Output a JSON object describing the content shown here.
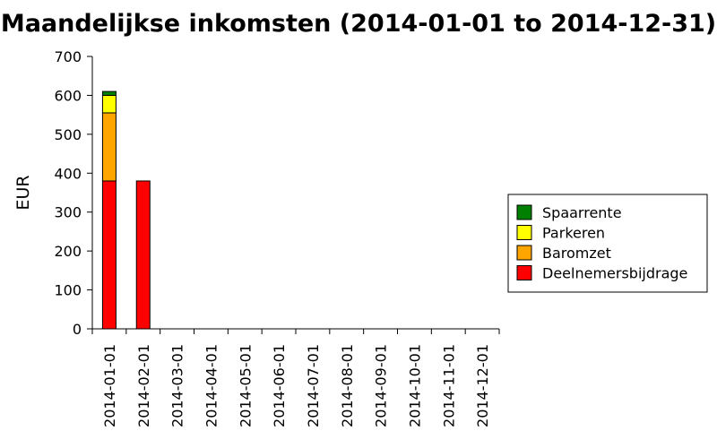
{
  "chart_data": {
    "type": "bar",
    "stacked": true,
    "title": "Maandelijkse inkomsten (2014-01-01 to 2014-12-31)",
    "xlabel": "",
    "ylabel": "EUR",
    "ylim": [
      0,
      700
    ],
    "yticks": [
      0,
      100,
      200,
      300,
      400,
      500,
      600,
      700
    ],
    "categories": [
      "2014-01-01",
      "2014-02-01",
      "2014-03-01",
      "2014-04-01",
      "2014-05-01",
      "2014-06-01",
      "2014-07-01",
      "2014-08-01",
      "2014-09-01",
      "2014-10-01",
      "2014-11-01",
      "2014-12-01"
    ],
    "series": [
      {
        "name": "Deelnemersbijdrage",
        "color": "#ff0000",
        "values": [
          380,
          380,
          0,
          0,
          0,
          0,
          0,
          0,
          0,
          0,
          0,
          0
        ]
      },
      {
        "name": "Baromzet",
        "color": "#ffa500",
        "values": [
          175,
          0,
          0,
          0,
          0,
          0,
          0,
          0,
          0,
          0,
          0,
          0
        ]
      },
      {
        "name": "Parkeren",
        "color": "#ffff00",
        "values": [
          45,
          0,
          0,
          0,
          0,
          0,
          0,
          0,
          0,
          0,
          0,
          0
        ]
      },
      {
        "name": "Spaarrente",
        "color": "#008000",
        "values": [
          10,
          0,
          0,
          0,
          0,
          0,
          0,
          0,
          0,
          0,
          0,
          0
        ]
      }
    ],
    "legend_order": [
      "Spaarrente",
      "Parkeren",
      "Baromzet",
      "Deelnemersbijdrage"
    ],
    "legend_position": "right",
    "grid": false
  }
}
